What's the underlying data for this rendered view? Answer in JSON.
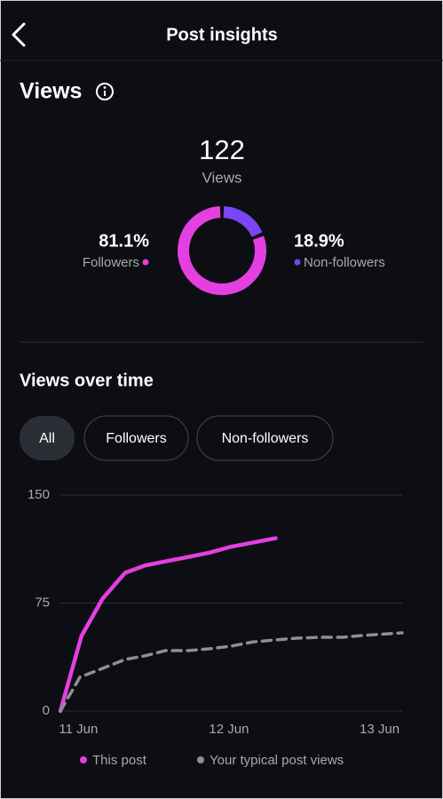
{
  "header": {
    "title": "Post insights"
  },
  "views": {
    "title": "Views",
    "total": 122,
    "total_label": "Views"
  },
  "filters": [
    "All",
    "Followers",
    "Non-followers"
  ],
  "chart_data": [
    {
      "type": "pie",
      "categories": [
        "Followers",
        "Non-followers"
      ],
      "values": [
        81.1,
        18.9
      ],
      "value_labels": [
        "81.1%",
        "18.9%"
      ],
      "colors": [
        "#e43fe0",
        "#7a45f5"
      ]
    },
    {
      "type": "line",
      "title": "Views over time",
      "xlim": [
        -0.12,
        2.15
      ],
      "xticks": [
        {
          "value": 0,
          "label": "11 Jun"
        },
        {
          "value": 1,
          "label": "12 Jun"
        },
        {
          "value": 2,
          "label": "13 Jun"
        }
      ],
      "ylim": [
        0,
        150
      ],
      "yticks": [
        0,
        75,
        150
      ],
      "grid": true,
      "series": [
        {
          "name": "This post",
          "color": "#e43fe0",
          "dash": false,
          "x": [
            -0.12,
            0.02,
            0.16,
            0.31,
            0.44,
            0.58,
            0.73,
            0.87,
            1.01,
            1.16,
            1.31
          ],
          "values": [
            0,
            52,
            78,
            96,
            101,
            104,
            107,
            110,
            114,
            117,
            120
          ]
        },
        {
          "name": "Your typical post views",
          "color": "#8e8e93",
          "dash": true,
          "x": [
            -0.12,
            0.01,
            0.16,
            0.31,
            0.44,
            0.58,
            0.73,
            0.87,
            1.01,
            1.16,
            1.31,
            1.45,
            1.6,
            1.75,
            1.89,
            2.15
          ],
          "values": [
            0,
            23.5,
            29.6,
            35.8,
            38.3,
            42,
            42,
            43.2,
            45,
            48,
            49.4,
            50.6,
            51.2,
            51.2,
            52.5,
            54.3
          ]
        }
      ]
    }
  ]
}
